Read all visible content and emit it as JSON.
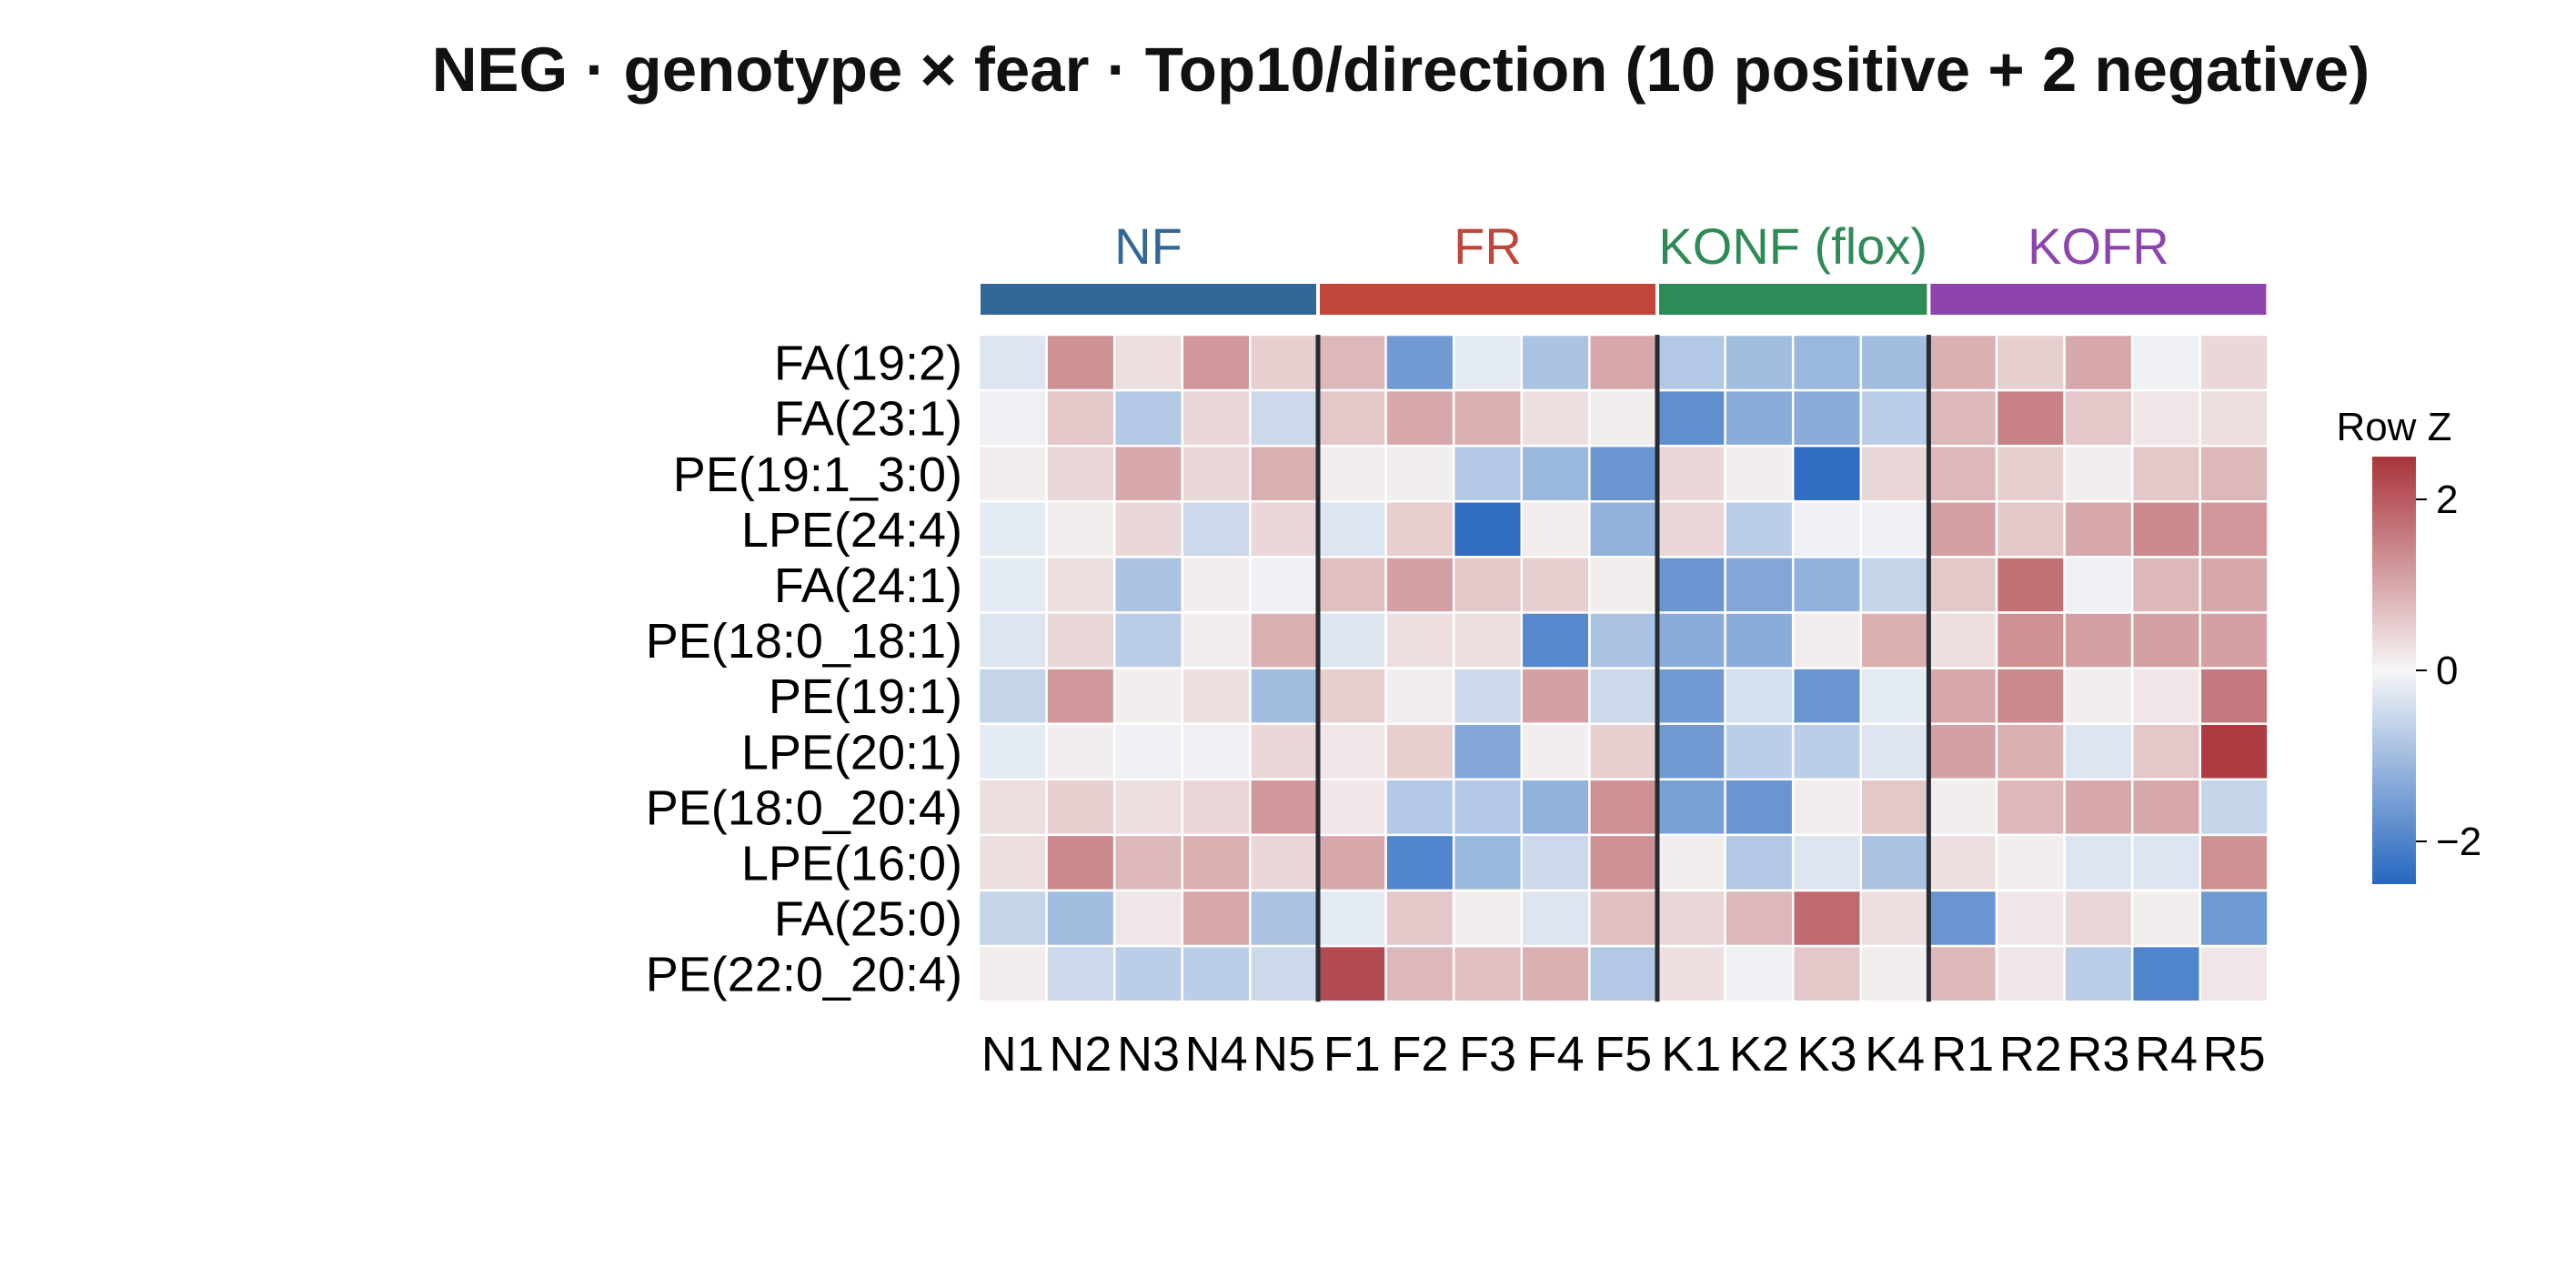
{
  "chart_data": {
    "type": "heatmap",
    "title": "NEG · genotype × fear · Top10/direction (10 positive + 2 negative)",
    "groups": [
      {
        "name": "NF",
        "color": "#336797",
        "columns": [
          "N1",
          "N2",
          "N3",
          "N4",
          "N5"
        ]
      },
      {
        "name": "FR",
        "color": "#c0463b",
        "columns": [
          "F1",
          "F2",
          "F3",
          "F4",
          "F5"
        ]
      },
      {
        "name": "KONF (flox)",
        "color": "#2e8b57",
        "columns": [
          "K1",
          "K2",
          "K3",
          "K4"
        ]
      },
      {
        "name": "KOFR",
        "color": "#8e44ad",
        "columns": [
          "R1",
          "R2",
          "R3",
          "R4",
          "R5"
        ]
      }
    ],
    "columns": [
      "N1",
      "N2",
      "N3",
      "N4",
      "N5",
      "F1",
      "F2",
      "F3",
      "F4",
      "F5",
      "K1",
      "K2",
      "K3",
      "K4",
      "R1",
      "R2",
      "R3",
      "R4",
      "R5"
    ],
    "rows": [
      "FA(19:2)",
      "FA(23:1)",
      "PE(19:1_3:0)",
      "LPE(24:4)",
      "FA(24:1)",
      "PE(18:0_18:1)",
      "PE(19:1)",
      "LPE(20:1)",
      "PE(18:0_20:4)",
      "LPE(16:0)",
      "FA(25:0)",
      "PE(22:0_20:4)"
    ],
    "values": [
      [
        -0.3,
        1.3,
        0.3,
        1.2,
        0.5,
        0.8,
        -1.6,
        -0.2,
        -0.9,
        1.0,
        -0.8,
        -1.0,
        -1.1,
        -1.0,
        0.9,
        0.5,
        1.0,
        -0.1,
        0.4
      ],
      [
        -0.1,
        0.6,
        -0.8,
        0.4,
        -0.5,
        0.6,
        1.0,
        0.9,
        0.3,
        0.1,
        -1.8,
        -1.3,
        -1.3,
        -0.7,
        0.8,
        1.5,
        0.6,
        0.2,
        0.3
      ],
      [
        0.1,
        0.4,
        1.0,
        0.4,
        0.9,
        0.1,
        0.1,
        -0.8,
        -1.1,
        -1.7,
        0.4,
        0.1,
        -2.4,
        0.4,
        0.8,
        0.5,
        0.1,
        0.6,
        0.8
      ],
      [
        -0.2,
        0.1,
        0.4,
        -0.5,
        0.4,
        -0.3,
        0.5,
        -2.4,
        0.1,
        -1.2,
        0.4,
        -0.7,
        -0.1,
        -0.1,
        1.1,
        0.6,
        1.0,
        1.4,
        1.2
      ],
      [
        -0.2,
        0.3,
        -0.9,
        0.1,
        -0.1,
        0.7,
        1.1,
        0.6,
        0.5,
        0.1,
        -1.7,
        -1.4,
        -1.2,
        -0.6,
        0.6,
        1.7,
        -0.1,
        0.8,
        1.0
      ],
      [
        -0.3,
        0.4,
        -0.7,
        0.1,
        0.9,
        -0.3,
        0.3,
        0.3,
        -1.9,
        -0.9,
        -1.3,
        -1.3,
        0.1,
        0.9,
        0.3,
        1.3,
        1.1,
        1.1,
        1.1
      ],
      [
        -0.6,
        1.2,
        0.1,
        0.3,
        -1.0,
        0.5,
        0.1,
        -0.5,
        1.1,
        -0.5,
        -1.6,
        -0.4,
        -1.7,
        -0.2,
        1.0,
        1.4,
        0.1,
        0.2,
        1.6
      ],
      [
        -0.2,
        0.1,
        -0.1,
        -0.1,
        0.4,
        0.2,
        0.5,
        -1.4,
        0.1,
        0.5,
        -1.6,
        -0.7,
        -0.7,
        -0.3,
        1.1,
        0.9,
        -0.3,
        0.6,
        2.4
      ],
      [
        0.3,
        0.5,
        0.3,
        0.4,
        1.2,
        0.2,
        -0.8,
        -0.8,
        -1.2,
        1.3,
        -1.5,
        -1.7,
        0.1,
        0.6,
        0.1,
        0.8,
        1.0,
        1.0,
        -0.6
      ],
      [
        0.3,
        1.4,
        0.8,
        0.9,
        0.4,
        1.0,
        -2.0,
        -1.1,
        -0.5,
        1.3,
        0.1,
        -0.8,
        -0.3,
        -0.9,
        0.3,
        0.1,
        -0.3,
        -0.3,
        1.3
      ],
      [
        -0.6,
        -1.0,
        0.2,
        1.0,
        -0.9,
        -0.2,
        0.6,
        0.1,
        -0.3,
        0.7,
        0.4,
        0.8,
        1.8,
        0.3,
        -1.7,
        0.2,
        0.4,
        0.1,
        -1.6
      ],
      [
        0.1,
        -0.5,
        -0.7,
        -0.7,
        -0.5,
        2.2,
        0.8,
        0.7,
        0.9,
        -0.8,
        0.3,
        -0.1,
        0.6,
        0.1,
        0.8,
        0.2,
        -0.7,
        -2.0,
        0.2
      ]
    ],
    "colorbar": {
      "title": "Row Z",
      "range": [
        -2.5,
        2.5
      ],
      "ticks": [
        2,
        0,
        -2
      ],
      "tick_labels": [
        "2",
        "0",
        "−2"
      ],
      "color_low": "#2667c0",
      "color_mid": "#f6f6f6",
      "color_high": "#a9333a"
    }
  }
}
